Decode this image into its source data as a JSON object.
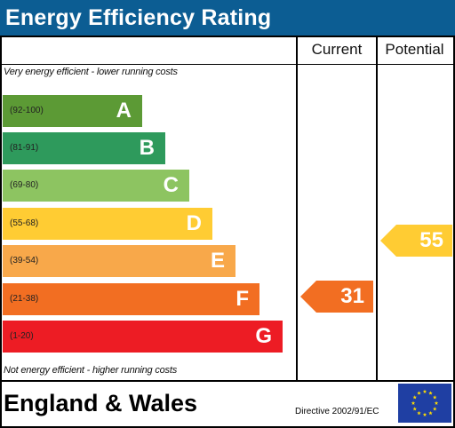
{
  "title": "Energy Efficiency Rating",
  "columns": {
    "current": "Current",
    "potential": "Potential"
  },
  "top_note": "Very energy efficient - lower running costs",
  "bottom_note": "Not energy efficient - higher running costs",
  "bands": [
    {
      "range": "(92-100)",
      "letter": "A",
      "color": "#5c9a35"
    },
    {
      "range": "(81-91)",
      "letter": "B",
      "color": "#2e9a5c"
    },
    {
      "range": "(69-80)",
      "letter": "C",
      "color": "#8dc461"
    },
    {
      "range": "(55-68)",
      "letter": "D",
      "color": "#ffcc33"
    },
    {
      "range": "(39-54)",
      "letter": "E",
      "color": "#f8a84a"
    },
    {
      "range": "(21-38)",
      "letter": "F",
      "color": "#f26e22"
    },
    {
      "range": "(1-20)",
      "letter": "G",
      "color": "#ed1c24"
    }
  ],
  "current_rating": {
    "value": "31",
    "color": "#f26e22"
  },
  "potential_rating": {
    "value": "55",
    "color": "#ffcc33"
  },
  "footer": {
    "country": "England & Wales",
    "directive": "Directive 2002/91/EC"
  },
  "colors": {
    "title_bar": "#0c5d93",
    "eu_flag": "#1f3fa3",
    "eu_star": "#ffdd00"
  }
}
